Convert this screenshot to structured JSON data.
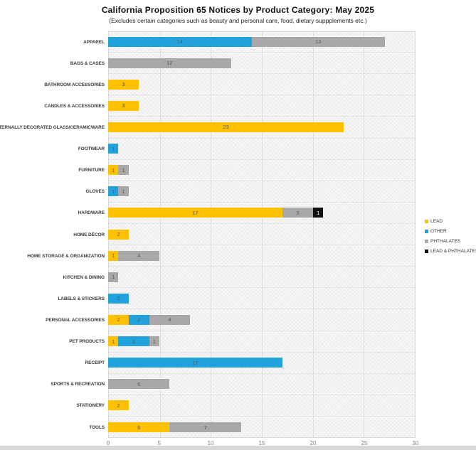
{
  "chart": {
    "title": "California Proposition 65 Notices by Product Category: May 2025",
    "subtitle": "(Excludes certain categories such as beauty and personal care, food, dietary suppplements etc.)"
  },
  "colors": {
    "lead": "#FFC000",
    "other": "#22A2DC",
    "phthalates": "#A8A8A8",
    "lead_phthalates": "#111111",
    "value_label": "#595959",
    "gridline": "#dedede",
    "plot_background": "#f6f6f6"
  },
  "chart_data": {
    "type": "bar",
    "orientation": "horizontal",
    "stacked": true,
    "title": "California Proposition 65 Notices by Product Category: May 2025",
    "subtitle": "(Excludes certain categories such as beauty and personal care, food, dietary suppplements etc.)",
    "xlabel": "",
    "ylabel": "",
    "xlim": [
      0,
      30
    ],
    "x_ticks": [
      0,
      5,
      10,
      15,
      20,
      25,
      30
    ],
    "grid": true,
    "legend_position": "middle-right",
    "legend": [
      {
        "label": "LEAD",
        "key": "lead"
      },
      {
        "label": "OTHER",
        "key": "other"
      },
      {
        "label": "PHTHALATES",
        "key": "phthalates"
      },
      {
        "label": "LEAD & PHTHALATES",
        "key": "lead_phthalates"
      }
    ],
    "categories": [
      "APPAREL",
      "BAGS & CASES",
      "BATHROOM ACCESSORIES",
      "CANDLES & ACCESSORIES",
      "EXTERNALLY DECORATED GLASS/CERAMICWARE",
      "FOOTWEAR",
      "FURNITURE",
      "GLOVES",
      "HARDWARE",
      "HOME DÉCOR",
      "HOME STORAGE & ORGANIZATION",
      "KITCHEN & DINING",
      "LABELS & STICKERS",
      "PERSONAL ACCESSORIES",
      "PET PRODUCTS",
      "RECEIPT",
      "SPORTS & RECREATION",
      "STATIONERY",
      "TOOLS"
    ],
    "series": [
      {
        "name": "LEAD",
        "key": "lead",
        "values": [
          0,
          0,
          3,
          3,
          23,
          0,
          1,
          0,
          17,
          2,
          1,
          0,
          0,
          2,
          1,
          0,
          0,
          2,
          6
        ]
      },
      {
        "name": "OTHER",
        "key": "other",
        "values": [
          14,
          0,
          0,
          0,
          0,
          1,
          0,
          1,
          0,
          0,
          0,
          0,
          2,
          2,
          3,
          17,
          0,
          0,
          0
        ]
      },
      {
        "name": "PHTHALATES",
        "key": "phthalates",
        "values": [
          13,
          12,
          0,
          0,
          0,
          0,
          1,
          1,
          3,
          0,
          4,
          1,
          0,
          4,
          1,
          0,
          6,
          0,
          7
        ]
      },
      {
        "name": "LEAD & PHTHALATES",
        "key": "lead_phthalates",
        "values": [
          0,
          0,
          0,
          0,
          0,
          0,
          0,
          0,
          1,
          0,
          0,
          0,
          0,
          0,
          0,
          0,
          0,
          0,
          0
        ]
      }
    ]
  }
}
